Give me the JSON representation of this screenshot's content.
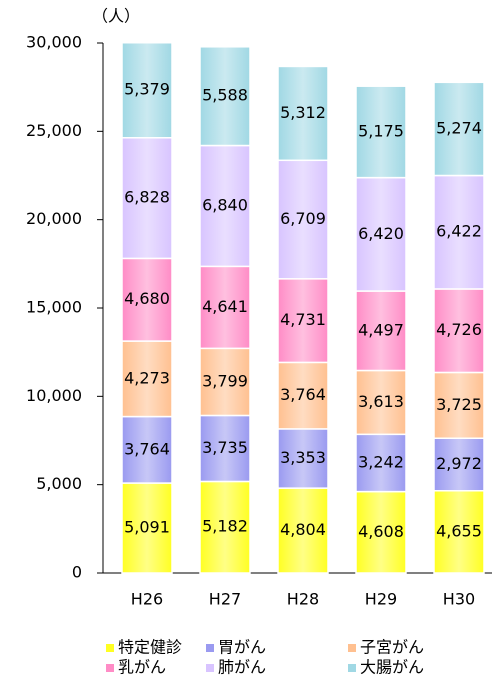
{
  "chart_data": {
    "type": "stacked_bar",
    "unit_label": "（人）",
    "categories": [
      "H26",
      "H27",
      "H28",
      "H29",
      "H30"
    ],
    "series": [
      {
        "name": "特定健診",
        "color": "#ffff22",
        "values": [
          5091,
          5182,
          4804,
          4608,
          4655
        ],
        "value_labels": [
          "5,091",
          "5,182",
          "4,804",
          "4,608",
          "4,655"
        ]
      },
      {
        "name": "胃がん",
        "color": "#9a9af0",
        "values": [
          3764,
          3735,
          3353,
          3242,
          2972
        ],
        "value_labels": [
          "3,764",
          "3,735",
          "3,353",
          "3,242",
          "2,972"
        ]
      },
      {
        "name": "子宮がん",
        "color": "#ffc090",
        "values": [
          4273,
          3799,
          3764,
          3613,
          3725
        ],
        "value_labels": [
          "4,273",
          "3,799",
          "3,764",
          "3,613",
          "3,725"
        ]
      },
      {
        "name": "乳がん",
        "color": "#ff8cc6",
        "values": [
          4680,
          4641,
          4731,
          4497,
          4726
        ],
        "value_labels": [
          "4,680",
          "4,641",
          "4,731",
          "4,497",
          "4,726"
        ]
      },
      {
        "name": "肺がん",
        "color": "#d8c4ff",
        "values": [
          6828,
          6840,
          6709,
          6420,
          6422
        ],
        "value_labels": [
          "6,828",
          "6,840",
          "6,709",
          "6,420",
          "6,422"
        ]
      },
      {
        "name": "大腸がん",
        "color": "#a0d8e4",
        "values": [
          5379,
          5588,
          5312,
          5175,
          5274
        ],
        "value_labels": [
          "5,379",
          "5,588",
          "5,312",
          "5,175",
          "5,274"
        ]
      }
    ],
    "ylim": [
      0,
      30000
    ],
    "yticks": [
      0,
      {
        "value": 5000,
        "label": "5,000"
      },
      {
        "value": 10000,
        "label": "10,000"
      },
      {
        "value": 15000,
        "label": "15,000"
      },
      {
        "value": 20000,
        "label": "20,000"
      },
      {
        "value": 25000,
        "label": "25,000"
      },
      {
        "value": 30000,
        "label": "30,000"
      }
    ],
    "legend": "bottom",
    "grid": false
  }
}
